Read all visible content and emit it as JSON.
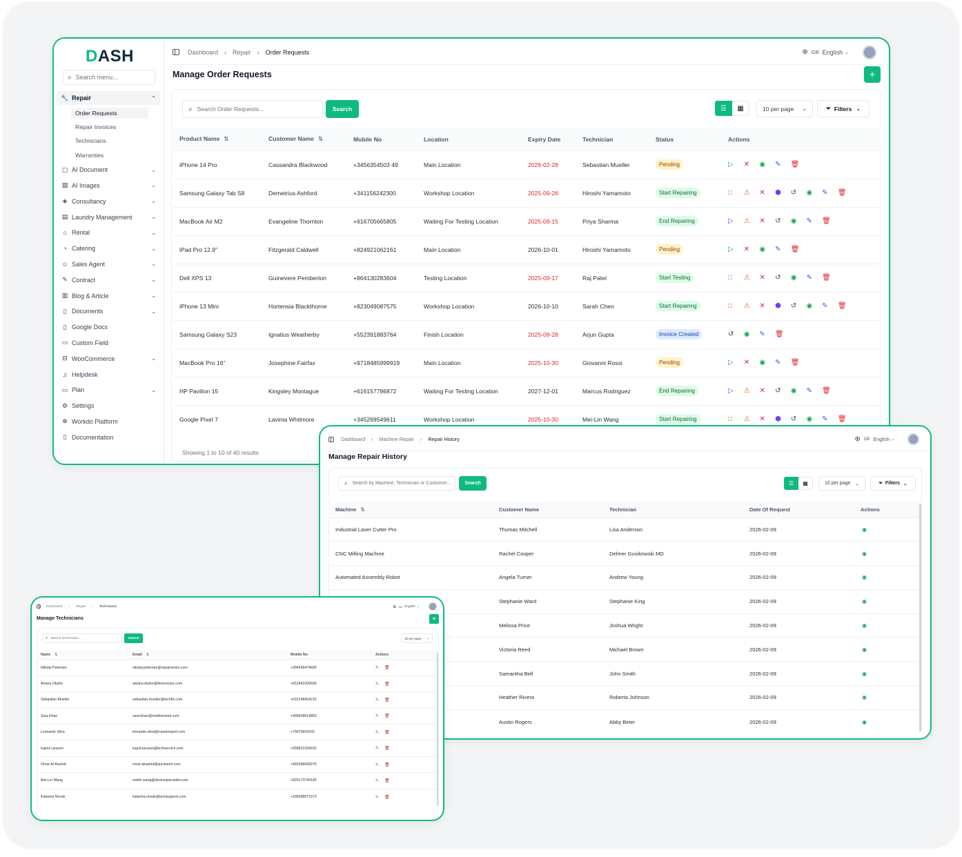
{
  "orders": {
    "logo": "DASH",
    "sidebar": {
      "search_placeholder": "Search menu...",
      "items": [
        {
          "label": "Repair",
          "icon": "wrench-icon",
          "glyph": "🔧",
          "active": true,
          "chevron": "^",
          "children": [
            {
              "label": "Order Requests",
              "current": true
            },
            {
              "label": "Repair Invoices"
            },
            {
              "label": "Technicians"
            },
            {
              "label": "Warranties"
            }
          ]
        },
        {
          "label": "AI Document",
          "icon": "ai-document-icon",
          "glyph": "▢",
          "chevron": "v"
        },
        {
          "label": "AI Images",
          "icon": "image-icon",
          "glyph": "▧",
          "chevron": "v"
        },
        {
          "label": "Consultancy",
          "icon": "consultancy-icon",
          "glyph": "◈",
          "chevron": "v"
        },
        {
          "label": "Laundry Management",
          "icon": "laundry-icon",
          "glyph": "▤",
          "chevron": "v"
        },
        {
          "label": "Rental",
          "icon": "home-icon",
          "glyph": "⌂",
          "chevron": "v"
        },
        {
          "label": "Catering",
          "icon": "catering-icon",
          "glyph": "◔",
          "chevron": "v"
        },
        {
          "label": "Sales Agent",
          "icon": "user-agent-icon",
          "glyph": "☺",
          "chevron": "v"
        },
        {
          "label": "Contract",
          "icon": "contract-icon",
          "glyph": "✎",
          "chevron": "v"
        },
        {
          "label": "Blog & Article",
          "icon": "blog-icon",
          "glyph": "▥",
          "chevron": "v"
        },
        {
          "label": "Documents",
          "icon": "document-icon",
          "glyph": "▯",
          "chevron": "v"
        },
        {
          "label": "Google Docs",
          "icon": "google-docs-icon",
          "glyph": "▯"
        },
        {
          "label": "Custom Field",
          "icon": "custom-field-icon",
          "glyph": "▭"
        },
        {
          "label": "WooCommerce",
          "icon": "woocommerce-icon",
          "glyph": "⊟",
          "chevron": "v"
        },
        {
          "label": "Helpdesk",
          "icon": "headset-icon",
          "glyph": "♫"
        },
        {
          "label": "Plan",
          "icon": "plan-icon",
          "glyph": "▭",
          "chevron": "v"
        },
        {
          "label": "Settings",
          "icon": "gear-icon",
          "glyph": "⚙"
        },
        {
          "label": "Workdo Platform",
          "icon": "globe-icon",
          "glyph": "⊕"
        },
        {
          "label": "Documentation",
          "icon": "book-icon",
          "glyph": "▯"
        }
      ]
    },
    "breadcrumb": [
      "Dashboard",
      "Repair",
      "Order Requests"
    ],
    "language": {
      "code": "GB",
      "label": "English"
    },
    "title": "Manage Order Requests",
    "search_placeholder": "Search Order Requests...",
    "search_button": "Search",
    "per_page": "10 per page",
    "filters_label": "Filters",
    "columns": [
      "Product Name",
      "Customer Name",
      "Mobile No",
      "Location",
      "Expiry Date",
      "Technician",
      "Status",
      "Actions"
    ],
    "rows": [
      {
        "product": "iPhone 14 Pro",
        "customer": "Cassandra Blackwood",
        "mobile": "+3456354503 49",
        "location": "Main Location",
        "expiry": "2026-02-28",
        "expired": true,
        "tech": "Sebastian Mueller",
        "status": "Pending",
        "status_type": "pending",
        "actions": [
          "play",
          "x",
          "eye",
          "edit",
          "delete"
        ]
      },
      {
        "product": "Samsung Galaxy Tab S8",
        "customer": "Demetrius Ashford",
        "mobile": "+341156242300",
        "location": "Workshop Location",
        "expiry": "2025-09-26",
        "expired": true,
        "tech": "Hiroshi Yamamoto",
        "status": "Start Repairing",
        "status_type": "repair",
        "actions": [
          "square-orange",
          "warn",
          "x",
          "box",
          "history",
          "eye",
          "edit",
          "delete"
        ]
      },
      {
        "product": "MacBook Air M2",
        "customer": "Evangeline Thornton",
        "mobile": "+616705665805",
        "location": "Waiting For Testing Location",
        "expiry": "2025-09-15",
        "expired": true,
        "tech": "Priya Sharma",
        "status": "End Repairing",
        "status_type": "repair",
        "actions": [
          "play-blue",
          "warn",
          "x",
          "history",
          "eye",
          "edit",
          "delete"
        ]
      },
      {
        "product": "iPad Pro 12.9\"",
        "customer": "Fitzgerald Caldwell",
        "mobile": "+824921062161",
        "location": "Main Location",
        "expiry": "2026-10-01",
        "expired": false,
        "tech": "Hiroshi Yamamoto",
        "status": "Pending",
        "status_type": "pending",
        "actions": [
          "play",
          "x",
          "eye",
          "edit",
          "delete"
        ]
      },
      {
        "product": "Dell XPS 13",
        "customer": "Guinevere Pemberton",
        "mobile": "+864130283604",
        "location": "Testing Location",
        "expiry": "2025-09-17",
        "expired": true,
        "tech": "Raj Patel",
        "status": "Start Testing",
        "status_type": "test",
        "actions": [
          "square-purple",
          "warn",
          "x",
          "history",
          "eye",
          "edit",
          "delete"
        ]
      },
      {
        "product": "iPhone 13 Mini",
        "customer": "Hortensia Blackthorne",
        "mobile": "+823049087575",
        "location": "Workshop Location",
        "expiry": "2026-10-10",
        "expired": false,
        "tech": "Sarah Chen",
        "status": "Start Repairing",
        "status_type": "repair",
        "actions": [
          "square-orange",
          "warn",
          "x",
          "box",
          "history",
          "eye",
          "edit",
          "delete"
        ]
      },
      {
        "product": "Samsung Galaxy S23",
        "customer": "Ignatius Weatherby",
        "mobile": "+552391883764",
        "location": "Finish Location",
        "expiry": "2025-09-28",
        "expired": true,
        "tech": "Arjun Gupta",
        "status": "Invoice Created",
        "status_type": "invoice",
        "actions": [
          "history",
          "eye",
          "edit",
          "delete"
        ]
      },
      {
        "product": "MacBook Pro 16\"",
        "customer": "Josephine Fairfax",
        "mobile": "+9718485999919",
        "location": "Main Location",
        "expiry": "2025-10-30",
        "expired": true,
        "tech": "Giovanni Rossi",
        "status": "Pending",
        "status_type": "pending",
        "actions": [
          "play",
          "x",
          "eye",
          "edit",
          "delete"
        ]
      },
      {
        "product": "HP Pavilion 15",
        "customer": "Kingsley Montague",
        "mobile": "+616157786872",
        "location": "Waiting For Testing Location",
        "expiry": "2027-12-01",
        "expired": false,
        "tech": "Marcus Rodriguez",
        "status": "End Repairing",
        "status_type": "repair",
        "actions": [
          "play-blue",
          "warn",
          "x",
          "history",
          "eye",
          "edit",
          "delete"
        ]
      },
      {
        "product": "Google Pixel 7",
        "customer": "Lavinia Whitmore",
        "mobile": "+345269549611",
        "location": "Workshop Location",
        "expiry": "2025-10-30",
        "expired": true,
        "tech": "Mei-Lin Wang",
        "status": "Start Repairing",
        "status_type": "repair",
        "actions": [
          "square-orange",
          "warn",
          "x",
          "box",
          "history",
          "eye",
          "edit",
          "delete"
        ]
      }
    ],
    "footer": "Showing 1 to 10 of 40 results"
  },
  "history": {
    "breadcrumb": [
      "Dashboard",
      "Machine Repair",
      "Repair History"
    ],
    "language": {
      "code": "GB",
      "label": "English"
    },
    "title": "Manage Repair History",
    "search_placeholder": "Search by Machine, Technician or Customer...",
    "search_button": "Search",
    "per_page": "10 per page",
    "filters_label": "Filters",
    "columns": [
      "Machine",
      "Customer Name",
      "Technician",
      "Date Of Request",
      "Actions"
    ],
    "rows": [
      {
        "machine": "Industrial Laser Cutter Pro",
        "customer": "Thomas Mitchell",
        "tech": "Lisa Anderson",
        "date": "2026-02-09"
      },
      {
        "machine": "CNC Milling Machine",
        "customer": "Rachel Cooper",
        "tech": "Delmer Gusikowski MD",
        "date": "2026-02-09"
      },
      {
        "machine": "Automated Assembly Robot",
        "customer": "Angela Turner",
        "tech": "Andrew Young",
        "date": "2026-02-09"
      },
      {
        "machine": "",
        "customer": "Stephanie Ward",
        "tech": "Stephanie King",
        "date": "2026-02-09"
      },
      {
        "machine": "",
        "customer": "Melissa Price",
        "tech": "Joshua Wright",
        "date": "2026-02-09"
      },
      {
        "machine": "",
        "customer": "Victoria Reed",
        "tech": "Michael Brown",
        "date": "2026-02-09"
      },
      {
        "machine": "",
        "customer": "Samantha Bell",
        "tech": "John Smith",
        "date": "2026-02-09"
      },
      {
        "machine": "",
        "customer": "Heather Rivera",
        "tech": "Roberta Johnson",
        "date": "2026-02-09"
      },
      {
        "machine": "",
        "customer": "Austin Rogers",
        "tech": "Abby Beier",
        "date": "2026-02-09"
      }
    ]
  },
  "techs": {
    "breadcrumb": [
      "Dashboard",
      "Repair",
      "Technicians"
    ],
    "language": {
      "code": "GB",
      "label": "English"
    },
    "title": "Manage Technicians",
    "search_placeholder": "Search technicians...",
    "search_button": "Search",
    "per_page": "10 per page",
    "columns": [
      "Name",
      "Email",
      "Mobile No",
      "Actions"
    ],
    "rows": [
      {
        "name": "Nikolai Petersen",
        "email": "nikolai.petersen@repairworks.com",
        "mobile": "+394596474690"
      },
      {
        "name": "Amara Okafor",
        "email": "amara.okafor@devicecare.com",
        "mobile": "+812642200693"
      },
      {
        "name": "Sebastian Mueller",
        "email": "sebastian.mueller@techfix.com",
        "mobile": "+615148404216"
      },
      {
        "name": "Zara Khan",
        "email": "zara.khan@mobilemend.com",
        "mobile": "+499428614850"
      },
      {
        "name": "Leonardo Silva",
        "email": "leonardo.silva@repairexpert.com",
        "mobile": "+79076834155"
      },
      {
        "name": "Ingrid Larsson",
        "email": "ingrid.larsson@techservice.com",
        "mobile": "+558531206632"
      },
      {
        "name": "Omar Al-Rashid",
        "email": "omar.alrashid@quicktech.com",
        "mobile": "+492068428275"
      },
      {
        "name": "Mei-Lin Wang",
        "email": "meilin.wang@devicespecialist.com",
        "mobile": "+825173744145"
      },
      {
        "name": "Katarina Novak",
        "email": "katarina.novak@techsupport.com",
        "mobile": "+335088071573"
      }
    ]
  },
  "colors": {
    "accent": "#10b981",
    "danger": "#dc2626",
    "border": "#10b981"
  }
}
